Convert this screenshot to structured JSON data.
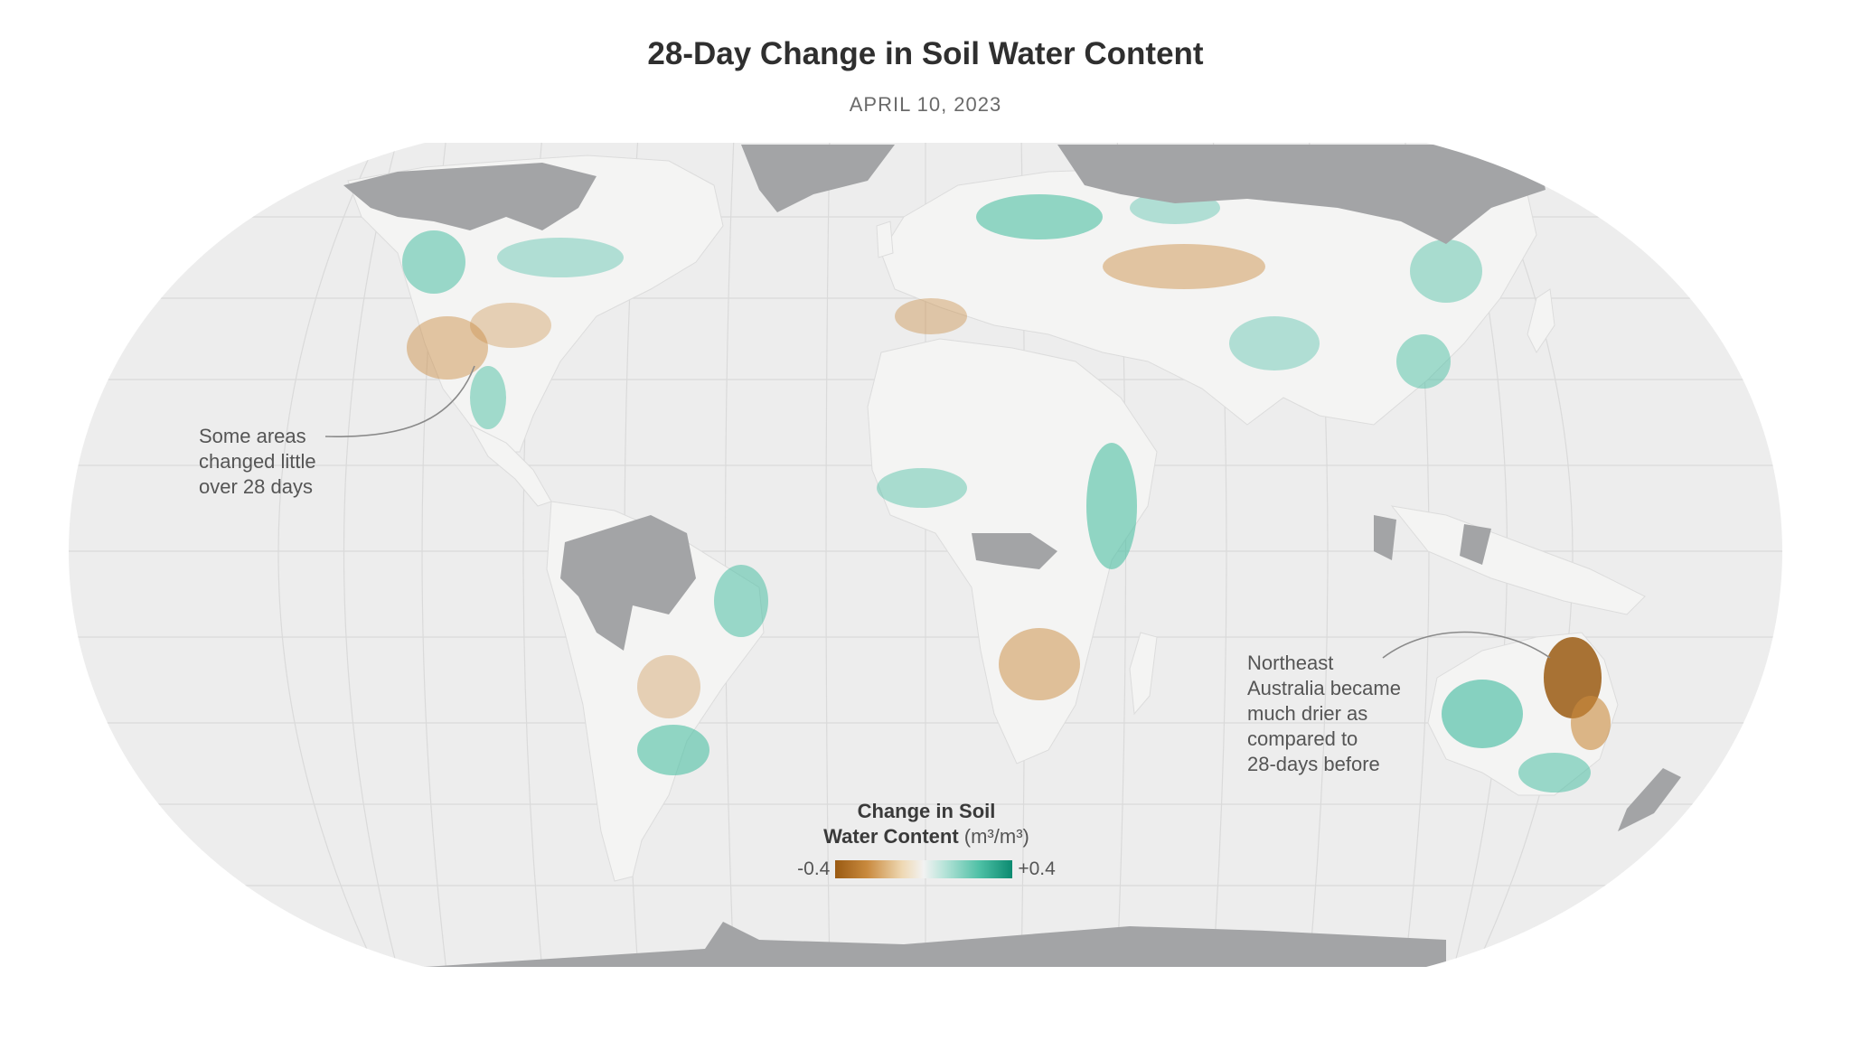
{
  "title": "28-Day Change in Soil Water Content",
  "subtitle": "APRIL 10, 2023",
  "annotations": {
    "north_america": [
      "Some areas",
      "changed little",
      "over 28 days"
    ],
    "australia": [
      "Northeast",
      "Australia became",
      "much drier as",
      "compared to",
      "28-days before"
    ]
  },
  "legend": {
    "title_line1": "Change in Soil",
    "title_line2": "Water Content",
    "unit": "(m³/m³)",
    "min_label": "-0.4",
    "max_label": "+0.4",
    "gradient_colors": [
      "#9a5a12",
      "#c98a3e",
      "#efd9b4",
      "#f2f2f2",
      "#b5e3d8",
      "#4cbfa4",
      "#0b8a70"
    ]
  },
  "colors": {
    "ocean": "#ededed",
    "no_data": "#a3a4a6",
    "wetter": "#4cbfa4",
    "drier": "#c98a3e",
    "graticule": "#dadada"
  }
}
